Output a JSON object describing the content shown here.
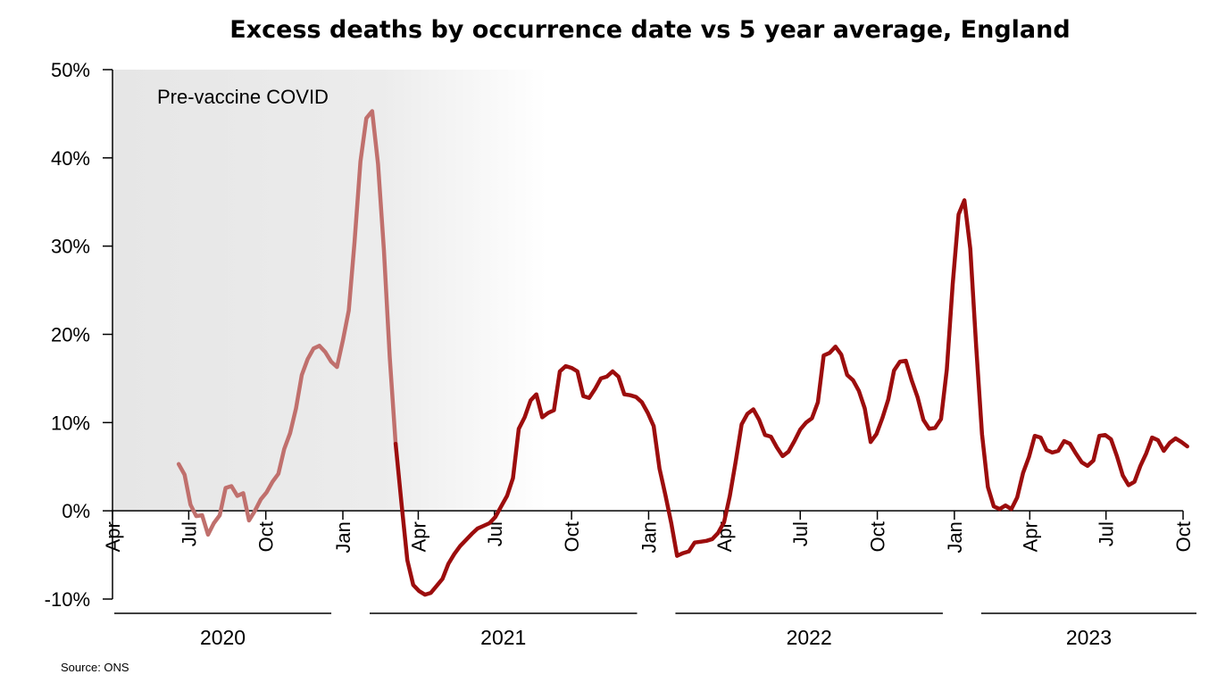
{
  "chart_data": {
    "type": "line",
    "title": "Excess deaths by occurrence date vs 5 year average, England",
    "source": "Source: ONS",
    "annotation": "Pre-vaccine COVID",
    "y_ticks": [
      "50%",
      "40%",
      "30%",
      "20%",
      "10%",
      "0%",
      "-10%"
    ],
    "y_tick_values": [
      50,
      40,
      30,
      20,
      10,
      0,
      -10
    ],
    "ylim": [
      -10,
      50
    ],
    "x_ticks": [
      "Apr",
      "Jul",
      "Oct",
      "Jan",
      "Apr",
      "Jul",
      "Oct",
      "Jan",
      "Apr",
      "Jul",
      "Oct",
      "Jan",
      "Apr",
      "Jul",
      "Oct"
    ],
    "x_tick_dates": [
      "2020-04-01",
      "2020-07-01",
      "2020-10-01",
      "2021-01-01",
      "2021-04-01",
      "2021-07-01",
      "2021-10-01",
      "2022-01-01",
      "2022-04-01",
      "2022-07-01",
      "2022-10-01",
      "2023-01-01",
      "2023-04-01",
      "2023-07-01",
      "2023-10-01"
    ],
    "xlim": [
      "2020-04-01",
      "2023-10-01"
    ],
    "years": [
      {
        "label": "2020",
        "start": "2020-04-01",
        "end": "2020-12-31"
      },
      {
        "label": "2021",
        "start": "2021-01-01",
        "end": "2021-12-31"
      },
      {
        "label": "2022",
        "start": "2022-01-01",
        "end": "2022-12-31"
      },
      {
        "label": "2023",
        "start": "2023-01-01",
        "end": "2023-10-01"
      }
    ],
    "shaded_period": {
      "start": "2020-04-01",
      "end": "2021-03-01",
      "fade_end": "2021-09-01"
    },
    "colors": {
      "pre_vaccine": "#c0706d",
      "post_vaccine": "#9c0d0d",
      "shade": "#e6e6e6"
    },
    "series": [
      {
        "segment": "pre-vaccine",
        "color": "#c0706d",
        "points": [
          [
            "2020-06-19",
            5.3
          ],
          [
            "2020-06-26",
            4.1
          ],
          [
            "2020-07-03",
            0.7
          ],
          [
            "2020-07-10",
            -0.6
          ],
          [
            "2020-07-17",
            -0.5
          ],
          [
            "2020-07-24",
            -2.7
          ],
          [
            "2020-07-31",
            -1.4
          ],
          [
            "2020-08-07",
            -0.5
          ],
          [
            "2020-08-14",
            2.6
          ],
          [
            "2020-08-21",
            2.8
          ],
          [
            "2020-08-28",
            1.7
          ],
          [
            "2020-09-04",
            2.0
          ],
          [
            "2020-09-11",
            -1.1
          ],
          [
            "2020-09-18",
            0.0
          ],
          [
            "2020-09-25",
            1.3
          ],
          [
            "2020-10-02",
            2.1
          ],
          [
            "2020-10-09",
            3.3
          ],
          [
            "2020-10-16",
            4.2
          ],
          [
            "2020-10-23",
            7.0
          ],
          [
            "2020-10-30",
            8.8
          ],
          [
            "2020-11-06",
            11.6
          ],
          [
            "2020-11-13",
            15.4
          ],
          [
            "2020-11-20",
            17.2
          ],
          [
            "2020-11-27",
            18.4
          ],
          [
            "2020-12-04",
            18.7
          ],
          [
            "2020-12-11",
            18.0
          ],
          [
            "2020-12-18",
            16.9
          ],
          [
            "2020-12-25",
            16.3
          ],
          [
            "2021-01-01",
            19.3
          ],
          [
            "2021-01-08",
            22.7
          ],
          [
            "2021-01-15",
            30.5
          ],
          [
            "2021-01-22",
            39.6
          ],
          [
            "2021-01-29",
            44.5
          ],
          [
            "2021-02-05",
            45.3
          ],
          [
            "2021-02-12",
            39.3
          ],
          [
            "2021-02-19",
            29.5
          ],
          [
            "2021-02-26",
            17.4
          ],
          [
            "2021-03-05",
            7.6
          ]
        ]
      },
      {
        "segment": "post-vaccine",
        "color": "#9c0d0d",
        "points": [
          [
            "2021-03-05",
            7.6
          ],
          [
            "2021-03-12",
            0.8
          ],
          [
            "2021-03-19",
            -5.6
          ],
          [
            "2021-03-26",
            -8.4
          ],
          [
            "2021-04-02",
            -9.1
          ],
          [
            "2021-04-09",
            -9.5
          ],
          [
            "2021-04-16",
            -9.3
          ],
          [
            "2021-04-23",
            -8.5
          ],
          [
            "2021-04-30",
            -7.7
          ],
          [
            "2021-05-07",
            -6.0
          ],
          [
            "2021-05-14",
            -4.9
          ],
          [
            "2021-05-21",
            -4.0
          ],
          [
            "2021-05-28",
            -3.3
          ],
          [
            "2021-06-04",
            -2.6
          ],
          [
            "2021-06-11",
            -2.0
          ],
          [
            "2021-06-18",
            -1.7
          ],
          [
            "2021-06-25",
            -1.4
          ],
          [
            "2021-07-02",
            -0.7
          ],
          [
            "2021-07-09",
            0.5
          ],
          [
            "2021-07-16",
            1.7
          ],
          [
            "2021-07-23",
            3.7
          ],
          [
            "2021-07-30",
            9.3
          ],
          [
            "2021-08-06",
            10.6
          ],
          [
            "2021-08-13",
            12.5
          ],
          [
            "2021-08-20",
            13.2
          ],
          [
            "2021-08-27",
            10.6
          ],
          [
            "2021-09-03",
            11.1
          ],
          [
            "2021-09-10",
            11.4
          ],
          [
            "2021-09-17",
            15.8
          ],
          [
            "2021-09-24",
            16.4
          ],
          [
            "2021-10-01",
            16.2
          ],
          [
            "2021-10-08",
            15.8
          ],
          [
            "2021-10-15",
            13.0
          ],
          [
            "2021-10-22",
            12.8
          ],
          [
            "2021-10-29",
            13.8
          ],
          [
            "2021-11-05",
            15.0
          ],
          [
            "2021-11-12",
            15.2
          ],
          [
            "2021-11-19",
            15.8
          ],
          [
            "2021-11-26",
            15.2
          ],
          [
            "2021-12-03",
            13.2
          ],
          [
            "2021-12-10",
            13.1
          ],
          [
            "2021-12-17",
            12.9
          ],
          [
            "2021-12-24",
            12.3
          ],
          [
            "2021-12-31",
            11.1
          ],
          [
            "2022-01-07",
            9.6
          ],
          [
            "2022-01-14",
            4.8
          ],
          [
            "2022-01-21",
            1.8
          ],
          [
            "2022-01-28",
            -1.4
          ],
          [
            "2022-02-04",
            -5.1
          ],
          [
            "2022-02-11",
            -4.8
          ],
          [
            "2022-02-18",
            -4.6
          ],
          [
            "2022-02-25",
            -3.6
          ],
          [
            "2022-03-04",
            -3.5
          ],
          [
            "2022-03-11",
            -3.4
          ],
          [
            "2022-03-18",
            -3.2
          ],
          [
            "2022-03-25",
            -2.5
          ],
          [
            "2022-04-01",
            -1.3
          ],
          [
            "2022-04-08",
            1.7
          ],
          [
            "2022-04-15",
            5.6
          ],
          [
            "2022-04-22",
            9.8
          ],
          [
            "2022-04-29",
            11.0
          ],
          [
            "2022-05-06",
            11.5
          ],
          [
            "2022-05-13",
            10.3
          ],
          [
            "2022-05-20",
            8.6
          ],
          [
            "2022-05-27",
            8.4
          ],
          [
            "2022-06-03",
            7.2
          ],
          [
            "2022-06-10",
            6.2
          ],
          [
            "2022-06-17",
            6.7
          ],
          [
            "2022-06-24",
            7.9
          ],
          [
            "2022-07-01",
            9.2
          ],
          [
            "2022-07-08",
            10.0
          ],
          [
            "2022-07-15",
            10.5
          ],
          [
            "2022-07-22",
            12.3
          ],
          [
            "2022-07-29",
            17.6
          ],
          [
            "2022-08-05",
            17.9
          ],
          [
            "2022-08-12",
            18.6
          ],
          [
            "2022-08-19",
            17.7
          ],
          [
            "2022-08-26",
            15.4
          ],
          [
            "2022-09-02",
            14.8
          ],
          [
            "2022-09-09",
            13.6
          ],
          [
            "2022-09-16",
            11.6
          ],
          [
            "2022-09-23",
            7.8
          ],
          [
            "2022-09-30",
            8.7
          ],
          [
            "2022-10-07",
            10.5
          ],
          [
            "2022-10-14",
            12.6
          ],
          [
            "2022-10-21",
            15.9
          ],
          [
            "2022-10-28",
            16.9
          ],
          [
            "2022-11-04",
            17.0
          ],
          [
            "2022-11-11",
            14.8
          ],
          [
            "2022-11-18",
            12.9
          ],
          [
            "2022-11-25",
            10.3
          ],
          [
            "2022-12-02",
            9.3
          ],
          [
            "2022-12-09",
            9.4
          ],
          [
            "2022-12-16",
            10.4
          ],
          [
            "2022-12-23",
            16.0
          ],
          [
            "2022-12-30",
            25.7
          ],
          [
            "2023-01-06",
            33.6
          ],
          [
            "2023-01-13",
            35.2
          ],
          [
            "2023-01-20",
            29.7
          ],
          [
            "2023-01-27",
            18.6
          ],
          [
            "2023-02-03",
            8.7
          ],
          [
            "2023-02-10",
            2.7
          ],
          [
            "2023-02-17",
            0.5
          ],
          [
            "2023-02-24",
            0.2
          ],
          [
            "2023-03-03",
            0.6
          ],
          [
            "2023-03-10",
            0.2
          ],
          [
            "2023-03-17",
            1.5
          ],
          [
            "2023-03-24",
            4.3
          ],
          [
            "2023-03-31",
            6.1
          ],
          [
            "2023-04-07",
            8.5
          ],
          [
            "2023-04-14",
            8.3
          ],
          [
            "2023-04-21",
            6.9
          ],
          [
            "2023-04-28",
            6.6
          ],
          [
            "2023-05-05",
            6.8
          ],
          [
            "2023-05-12",
            7.9
          ],
          [
            "2023-05-19",
            7.6
          ],
          [
            "2023-05-26",
            6.5
          ],
          [
            "2023-06-02",
            5.5
          ],
          [
            "2023-06-09",
            5.1
          ],
          [
            "2023-06-16",
            5.7
          ],
          [
            "2023-06-23",
            8.5
          ],
          [
            "2023-06-30",
            8.6
          ],
          [
            "2023-07-07",
            8.1
          ],
          [
            "2023-07-14",
            6.2
          ],
          [
            "2023-07-21",
            4.0
          ],
          [
            "2023-07-28",
            2.9
          ],
          [
            "2023-08-04",
            3.3
          ],
          [
            "2023-08-11",
            5.1
          ],
          [
            "2023-08-18",
            6.5
          ],
          [
            "2023-08-25",
            8.3
          ],
          [
            "2023-09-01",
            8.0
          ],
          [
            "2023-09-08",
            6.8
          ],
          [
            "2023-09-15",
            7.7
          ],
          [
            "2023-09-22",
            8.2
          ],
          [
            "2023-09-29",
            7.8
          ],
          [
            "2023-10-06",
            7.3
          ]
        ]
      }
    ]
  }
}
